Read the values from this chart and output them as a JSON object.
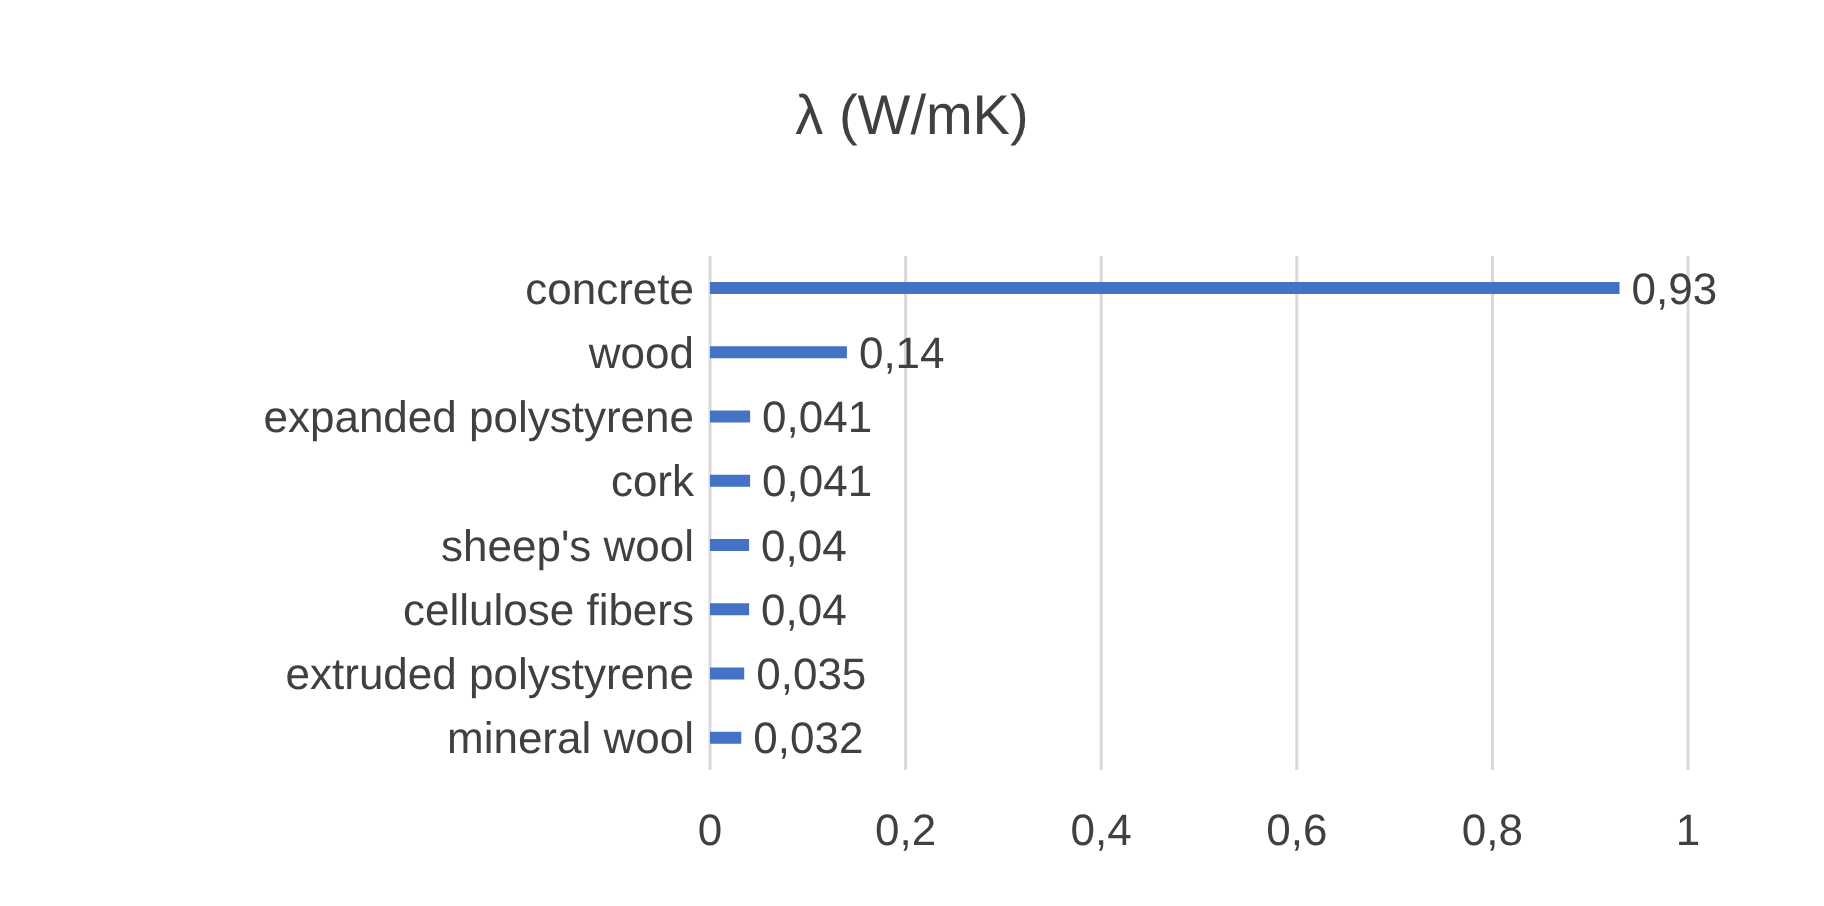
{
  "chart_data": {
    "type": "bar",
    "orientation": "horizontal",
    "title": "λ (W/mK)",
    "categories": [
      "concrete",
      "wood",
      "expanded polystyrene",
      "cork",
      "sheep's wool",
      "cellulose fibers",
      "extruded polystyrene",
      "mineral wool"
    ],
    "values": [
      0.93,
      0.14,
      0.041,
      0.041,
      0.04,
      0.04,
      0.035,
      0.032
    ],
    "value_labels": [
      "0,93",
      "0,14",
      "0,041",
      "0,041",
      "0,04",
      "0,04",
      "0,035",
      "0,032"
    ],
    "color": "#4472c4",
    "xlim": [
      0,
      1
    ],
    "xticks": [
      0,
      {
        "value": 0.2,
        "label": "0,2"
      },
      {
        "value": 0.4,
        "label": "0,4"
      },
      {
        "value": 0.6,
        "label": "0,6"
      },
      {
        "value": 0.8,
        "label": "0,8"
      },
      1
    ],
    "grid": "x",
    "legend": false
  }
}
